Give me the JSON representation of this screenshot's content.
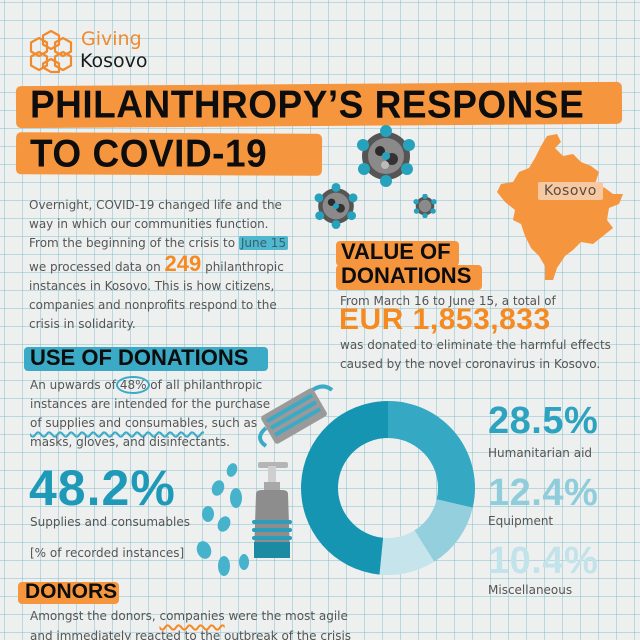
{
  "logo": {
    "line1": "Giving",
    "line2": "Kosovo",
    "color": "#f08a2c"
  },
  "title": {
    "line1": "PHILANTHROPY’S RESPONSE",
    "line2": "TO COVID-19",
    "band_color": "#f5953d"
  },
  "intro": {
    "part1": "Overnight, COVID-19 changed life and the way in which our communities function. From the beginning of the crisis to ",
    "date": "June 15",
    "part2": " we processed data on ",
    "count": "249",
    "part3": " philanthropic instances in Kosovo. This is how citizens, companies and nonprofits respond to the crisis in solidarity."
  },
  "map": {
    "label": "Kosovo",
    "color": "#f5953d"
  },
  "value_of_donations": {
    "heading_line1": "VALUE OF",
    "heading_line2": "DONATIONS",
    "desc1": "From March 16 to June 15, a total of",
    "amount": "EUR 1,853,833",
    "desc2": "was donated to eliminate the harmful effects caused by the novel coronavirus in Kosovo."
  },
  "use_of_donations": {
    "heading": "USE OF DONATIONS",
    "desc_part1": "An upwards of ",
    "desc_pct": "48%",
    "desc_part2": " of all philanthropic instances are intended for the purchase ",
    "desc_wavy": "of supplies and consumables",
    "desc_part3": ", such as masks, gloves, and disinfectants.",
    "main_stat": "48.2%",
    "main_label": "Supplies and consumables",
    "note": "[% of recorded instances]"
  },
  "chart_data": {
    "type": "pie",
    "title": "Use of donations",
    "note": "% of recorded instances",
    "categories": [
      "Supplies and consumables",
      "Humanitarian aid",
      "Equipment",
      "Miscellaneous"
    ],
    "values": [
      48.2,
      28.5,
      12.4,
      10.4
    ],
    "colors": [
      "#1695b3",
      "#35a8c3",
      "#93cfdc",
      "#c6e4eb"
    ],
    "donut": true
  },
  "legend": [
    {
      "pct": "28.5%",
      "label": "Humanitarian aid",
      "color": "#2ea3bf"
    },
    {
      "pct": "12.4%",
      "label": "Equipment",
      "color": "#8fcddb"
    },
    {
      "pct": "10.4%",
      "label": "Miscellaneous",
      "color": "#c3e3ea"
    }
  ],
  "donors": {
    "heading": "DONORS",
    "desc_part1": "Amongst the donors, ",
    "desc_wavy": "companies",
    "desc_part2": " were the most agile and immediately reacted to the outbreak of the crisis"
  }
}
